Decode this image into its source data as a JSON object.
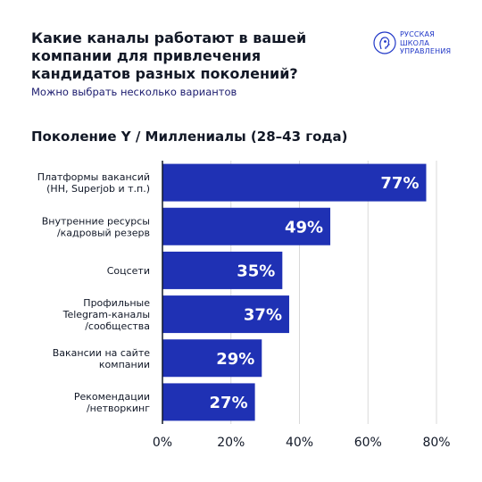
{
  "header": {
    "title": "Какие каналы работают в вашей компании для привлечения кандидатов разных поколений?",
    "subtitle": "Можно выбрать несколько вариантов"
  },
  "logo": {
    "lines": [
      "РУССКАЯ",
      "ШКОЛА",
      "УПРАВЛЕНИЯ"
    ],
    "icon": "profile-head-logo-icon",
    "color": "#1f36c7"
  },
  "chart_data": {
    "type": "bar",
    "orientation": "horizontal",
    "title": "Поколение Y / Миллениалы (28–43 года)",
    "categories": [
      [
        "Платформы вакансий",
        "(HH, Superjob и т.п.)"
      ],
      [
        "Внутренние ресурсы",
        "/кадровый резерв"
      ],
      [
        "Соцсети"
      ],
      [
        "Профильные",
        "Telegram-каналы",
        "/сообщества"
      ],
      [
        "Вакансии на сайте",
        "компании"
      ],
      [
        "Рекомендации",
        "/нетворкинг"
      ]
    ],
    "values": [
      77,
      49,
      35,
      37,
      29,
      27
    ],
    "value_labels": [
      "77%",
      "49%",
      "35%",
      "37%",
      "29%",
      "27%"
    ],
    "xlim": [
      0,
      80
    ],
    "x_ticks": [
      "0%",
      "20%",
      "40%",
      "60%",
      "80%"
    ],
    "grid": true,
    "bar_color": "#1f31b4",
    "label_color": "#ffffff"
  }
}
